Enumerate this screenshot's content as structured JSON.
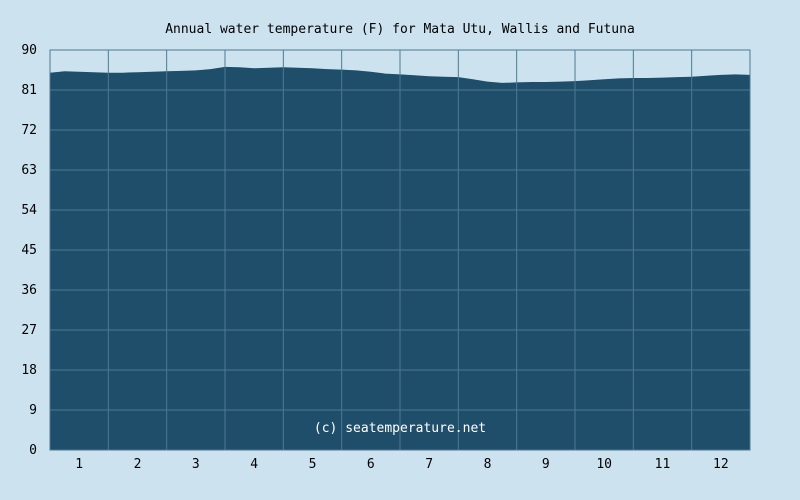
{
  "chart_data": {
    "type": "area",
    "title": "Annual water temperature (F) for Mata Utu, Wallis and Futuna",
    "xlabel": "",
    "ylabel": "",
    "ylim": [
      0,
      90
    ],
    "y_ticks": [
      "0",
      "9",
      "18",
      "27",
      "36",
      "45",
      "54",
      "63",
      "72",
      "81",
      "90"
    ],
    "x_ticks": [
      "1",
      "2",
      "3",
      "4",
      "5",
      "6",
      "7",
      "8",
      "9",
      "10",
      "11",
      "12"
    ],
    "grid": true,
    "series": [
      {
        "x": [
          0.0,
          0.25,
          0.5,
          0.75,
          1.0,
          1.25,
          1.5,
          1.75,
          2.0,
          2.25,
          2.5,
          2.75,
          3.0,
          3.25,
          3.5,
          3.75,
          4.0,
          4.25,
          4.5,
          4.75,
          5.0,
          5.25,
          5.5,
          5.75,
          6.0,
          6.25,
          6.5,
          6.75,
          7.0,
          7.25,
          7.5,
          7.75,
          8.0,
          8.25,
          8.5,
          8.75,
          9.0,
          9.25,
          9.5,
          9.75,
          10.0,
          10.25,
          10.5,
          10.75,
          11.0,
          11.25,
          11.5,
          11.75,
          12.0
        ],
        "values": [
          84.9,
          85.2,
          85.1,
          85.0,
          84.9,
          84.9,
          85.0,
          85.1,
          85.2,
          85.3,
          85.4,
          85.7,
          86.2,
          86.1,
          85.9,
          86.0,
          86.1,
          86.0,
          85.9,
          85.7,
          85.6,
          85.4,
          85.1,
          84.7,
          84.5,
          84.3,
          84.1,
          84.0,
          83.9,
          83.4,
          82.9,
          82.6,
          82.7,
          82.8,
          82.8,
          82.9,
          83.0,
          83.2,
          83.4,
          83.6,
          83.7,
          83.7,
          83.8,
          83.9,
          84.0,
          84.2,
          84.4,
          84.5,
          84.4
        ]
      }
    ],
    "colors": {
      "background": "#cce3ef",
      "fill": "#1f4e6b",
      "grid": "#4d7990",
      "border": "#4d7990"
    },
    "annotations": [
      "(c) seatemperature.net"
    ]
  }
}
